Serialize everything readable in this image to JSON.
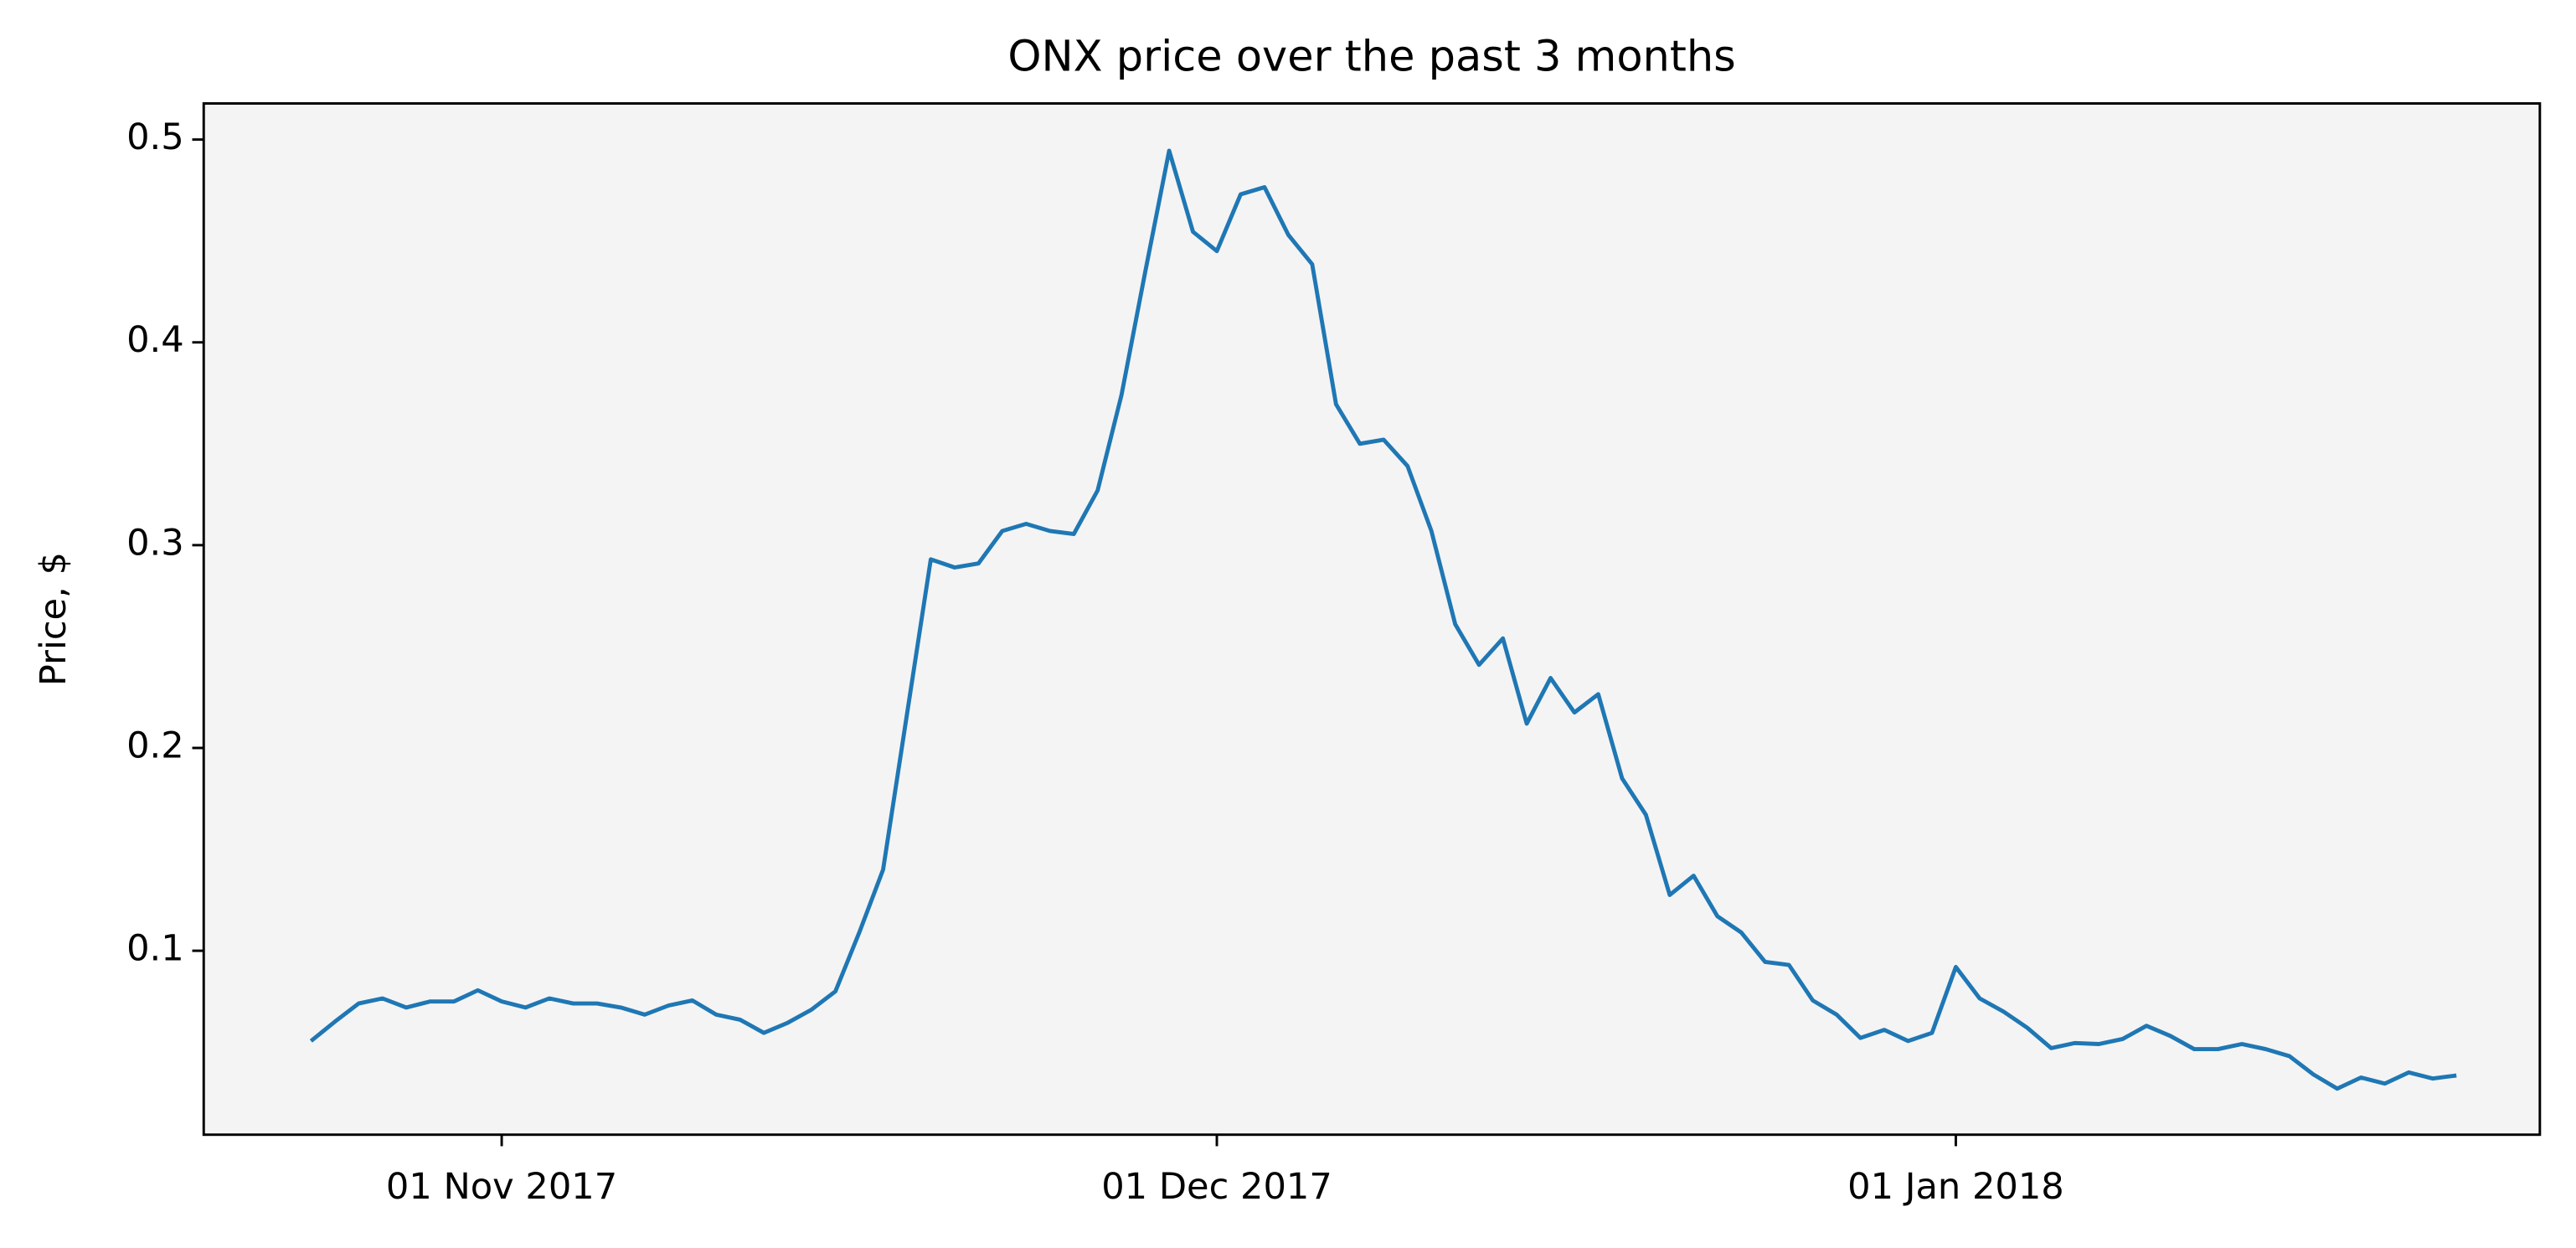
{
  "chart_data": {
    "type": "line",
    "title": "ONX price over the past 3 months",
    "ylabel": "Price, $",
    "x": [
      "2017-10-24",
      "2017-10-25",
      "2017-10-26",
      "2017-10-27",
      "2017-10-28",
      "2017-10-29",
      "2017-10-30",
      "2017-10-31",
      "2017-11-01",
      "2017-11-02",
      "2017-11-03",
      "2017-11-04",
      "2017-11-05",
      "2017-11-06",
      "2017-11-07",
      "2017-11-08",
      "2017-11-09",
      "2017-11-10",
      "2017-11-11",
      "2017-11-12",
      "2017-11-13",
      "2017-11-14",
      "2017-11-15",
      "2017-11-16",
      "2017-11-17",
      "2017-11-18",
      "2017-11-19",
      "2017-11-20",
      "2017-11-21",
      "2017-11-22",
      "2017-11-23",
      "2017-11-24",
      "2017-11-25",
      "2017-11-26",
      "2017-11-27",
      "2017-11-28",
      "2017-11-29",
      "2017-11-30",
      "2017-12-01",
      "2017-12-02",
      "2017-12-03",
      "2017-12-04",
      "2017-12-05",
      "2017-12-06",
      "2017-12-07",
      "2017-12-08",
      "2017-12-09",
      "2017-12-10",
      "2017-12-11",
      "2017-12-12",
      "2017-12-13",
      "2017-12-14",
      "2017-12-15",
      "2017-12-16",
      "2017-12-17",
      "2017-12-18",
      "2017-12-19",
      "2017-12-20",
      "2017-12-21",
      "2017-12-22",
      "2017-12-23",
      "2017-12-24",
      "2017-12-25",
      "2017-12-26",
      "2017-12-27",
      "2017-12-28",
      "2017-12-29",
      "2017-12-30",
      "2017-12-31",
      "2018-01-01",
      "2018-01-02",
      "2018-01-03",
      "2018-01-04",
      "2018-01-05",
      "2018-01-06",
      "2018-01-07",
      "2018-01-08",
      "2018-01-09",
      "2018-01-10",
      "2018-01-11",
      "2018-01-12",
      "2018-01-13",
      "2018-01-14",
      "2018-01-15",
      "2018-01-16",
      "2018-01-17",
      "2018-01-18",
      "2018-01-19",
      "2018-01-20",
      "2018-01-21",
      "2018-01-22"
    ],
    "series": [
      {
        "name": "ONX",
        "color": "#1f77b4",
        "values": [
          0.0555,
          0.065,
          0.074,
          0.0765,
          0.072,
          0.075,
          0.075,
          0.0805,
          0.075,
          0.072,
          0.0765,
          0.074,
          0.074,
          0.072,
          0.0685,
          0.073,
          0.0755,
          0.0685,
          0.066,
          0.0595,
          0.0645,
          0.071,
          0.08,
          0.109,
          0.14,
          0.2165,
          0.293,
          0.289,
          0.291,
          0.307,
          0.3105,
          0.307,
          0.3055,
          0.327,
          0.374,
          0.435,
          0.4945,
          0.4545,
          0.445,
          0.473,
          0.4765,
          0.453,
          0.4385,
          0.3695,
          0.35,
          0.352,
          0.339,
          0.307,
          0.261,
          0.241,
          0.254,
          0.212,
          0.2345,
          0.2175,
          0.2265,
          0.185,
          0.167,
          0.1275,
          0.137,
          0.117,
          0.109,
          0.0945,
          0.093,
          0.0755,
          0.0685,
          0.057,
          0.061,
          0.0555,
          0.0595,
          0.092,
          0.0765,
          0.07,
          0.062,
          0.052,
          0.0545,
          0.054,
          0.0565,
          0.063,
          0.058,
          0.0515,
          0.0515,
          0.054,
          0.0515,
          0.048,
          0.039,
          0.032,
          0.0375,
          0.0345,
          0.04,
          0.037,
          0.0385
        ]
      }
    ],
    "xlim": [
      "2017-10-19T12:00:00Z",
      "2018-01-25T12:00:00Z"
    ],
    "xticks": [
      {
        "value": "2017-11-01",
        "label": "01 Nov 2017"
      },
      {
        "value": "2017-12-01",
        "label": "01 Dec 2017"
      },
      {
        "value": "2018-01-01",
        "label": "01 Jan 2018"
      }
    ],
    "ylim": [
      0.0093,
      0.5178
    ],
    "yticks": [
      0.1,
      0.2,
      0.3,
      0.4,
      0.5
    ]
  }
}
